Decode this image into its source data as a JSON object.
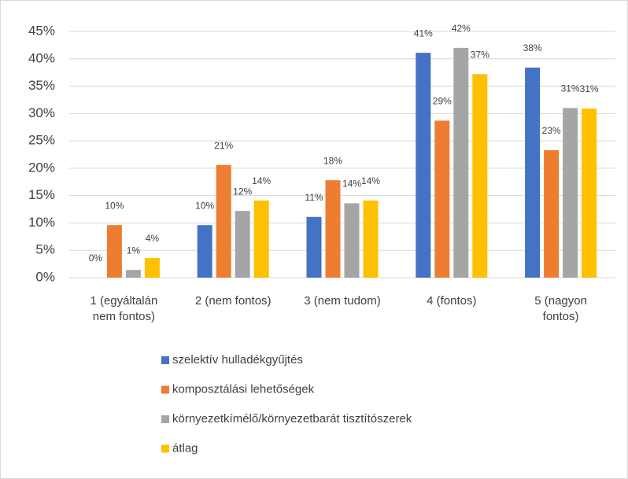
{
  "chart_data": {
    "type": "bar",
    "categories": [
      "1 (egyáltalán nem fontos)",
      "2 (nem fontos)",
      "3 (nem tudom)",
      "4 (fontos)",
      "5 (nagyon fontos)"
    ],
    "series": [
      {
        "name": "szelektív hulladékgyűjtés",
        "color": "#4472c4",
        "values": [
          0,
          9.6,
          11.1,
          41.1,
          38.4
        ],
        "value_labels": [
          "0%",
          "10%",
          "11%",
          "41%",
          "38%"
        ]
      },
      {
        "name": "komposztálási lehetőségek",
        "color": "#ed7d31",
        "values": [
          9.6,
          20.6,
          17.8,
          28.7,
          23.3
        ],
        "value_labels": [
          "10%",
          "21%",
          "18%",
          "29%",
          "23%"
        ]
      },
      {
        "name": "környezetkímélő/környezetbarát tisztítószerek",
        "color": "#a5a5a5",
        "values": [
          1.4,
          12.2,
          13.6,
          42.0,
          31.0
        ],
        "value_labels": [
          "1%",
          "12%",
          "14%",
          "42%",
          "31%"
        ]
      },
      {
        "name": "átlag",
        "color": "#ffc000",
        "values": [
          3.6,
          14.1,
          14.1,
          37.2,
          30.9
        ],
        "value_labels": [
          "4%",
          "14%",
          "14%",
          "37%",
          "31%"
        ]
      }
    ],
    "ylim": [
      0,
      45
    ],
    "yticks": [
      {
        "value": 0,
        "label": "0%"
      },
      {
        "value": 5,
        "label": "5%"
      },
      {
        "value": 10,
        "label": "10%"
      },
      {
        "value": 15,
        "label": "15%"
      },
      {
        "value": 20,
        "label": "20%"
      },
      {
        "value": 25,
        "label": "25%"
      },
      {
        "value": 30,
        "label": "30%"
      },
      {
        "value": 35,
        "label": "35%"
      },
      {
        "value": 40,
        "label": "40%"
      },
      {
        "value": 45,
        "label": "45%"
      }
    ],
    "grid": true,
    "legend": "bottom"
  }
}
